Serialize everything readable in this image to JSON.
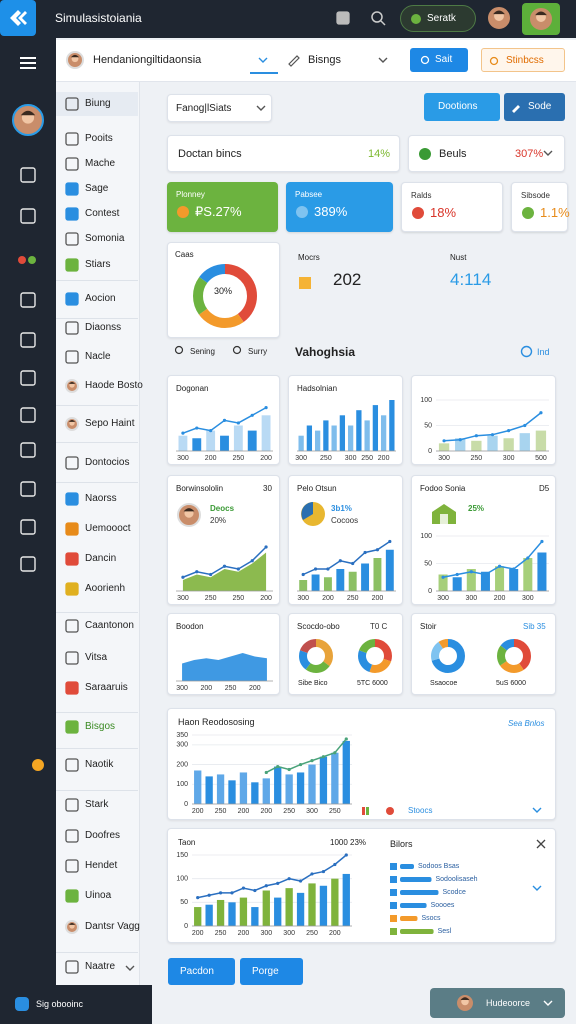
{
  "topbar": {
    "title": "Simulasistoiania",
    "button": "Seratk"
  },
  "subbar": {
    "project": "Hendaniongiltidaonsia",
    "filter": "Bisngs",
    "primary": "Sait",
    "secondary": "Stinbcss"
  },
  "sidebar": {
    "items": [
      "Biung",
      "Pooits",
      "Mache",
      "Sage",
      "Contest",
      "Somonia",
      "Stiars",
      "Aocion",
      "Diaonss",
      "Nacle",
      "Haode Bosto",
      "Sepo Haint",
      "Dontocios",
      "Naorss",
      "Uemoooct",
      "Dancin",
      "Aoorienh",
      "Caantonon",
      "Vitsa",
      "Saraaruis",
      "Bisgos",
      "Naotik",
      "Stark",
      "Doofres",
      "Hendet",
      "Uinoa",
      "Dantsr Vagg",
      "Naatre"
    ]
  },
  "toolbar": {
    "range": "Fanog|lSiats",
    "primary": "Dootions",
    "secondary": "Sode"
  },
  "summary": [
    {
      "label": "Doctan bincs",
      "value": "14%"
    },
    {
      "label": "Beuls",
      "value": "307%"
    }
  ],
  "kpis": [
    {
      "label": "Plonney",
      "value": "₽S.27%"
    },
    {
      "label": "Pabsee",
      "value": "389%"
    },
    {
      "label": "Ralds",
      "value": "18%"
    },
    {
      "label": "Sibsode",
      "value": "1.1%"
    }
  ],
  "donut": {
    "title": "Caas",
    "center": "30%",
    "values": [
      40,
      25,
      20,
      15
    ],
    "colors": [
      "#e04b3a",
      "#f39a2b",
      "#6cb33f",
      "#2a8ee0"
    ],
    "legend": [
      "Sening",
      "Surry"
    ]
  },
  "metrics": [
    {
      "label": "Mocrs",
      "value": "202"
    },
    {
      "label": "Nust",
      "value": "4:114"
    }
  ],
  "section": {
    "title": "Vahoghsia",
    "link": "Ind"
  },
  "charts": [
    {
      "title": "Dogonan",
      "values": [
        3,
        2.5,
        4,
        3,
        5,
        4,
        7
      ],
      "line": [
        3.5,
        4.5,
        4,
        6,
        5.5,
        7,
        8.5
      ],
      "ylim": [
        0,
        10
      ],
      "color": "#2a8ee0",
      "alt_color": "#b9daf4",
      "line_color": "#2a8ee0",
      "categories": [
        "300",
        null,
        "200",
        null,
        "250",
        null,
        "200"
      ]
    },
    {
      "title": "Hadsolnian",
      "values": [
        3,
        5,
        4,
        6,
        5,
        7,
        5,
        8,
        6,
        9,
        7,
        10
      ],
      "ylim": [
        0,
        10
      ],
      "color": "#2a8ee0",
      "alt_color": "#7fbdec",
      "categories": [
        "300",
        null,
        null,
        "250",
        null,
        null,
        "300",
        null,
        "250",
        null,
        "200",
        null
      ]
    },
    {
      "values": [
        15,
        25,
        20,
        30,
        25,
        35,
        40
      ],
      "line": [
        20,
        22,
        30,
        32,
        40,
        50,
        75
      ],
      "ylim": [
        0,
        100
      ],
      "yticks": [
        0,
        50,
        100
      ],
      "color": "#a8d4ef",
      "alt_color": "#c8dca8",
      "line_color": "#2a8ee0",
      "categories": [
        "300",
        null,
        "250",
        null,
        "300",
        null,
        "500"
      ]
    },
    {
      "title": "Borwinsololin",
      "note": "30",
      "badge": [
        "Deocs",
        "20%"
      ],
      "kind": "area",
      "values": [
        2,
        3,
        2.5,
        4,
        3.5,
        5,
        7
      ],
      "line": [
        2.5,
        3.5,
        3,
        4.5,
        4,
        5.5,
        8
      ],
      "ylim": [
        0,
        10
      ],
      "color": "#7fb33c",
      "line_color": "#2a6fc0",
      "categories": [
        "300",
        null,
        "250",
        null,
        "250",
        null,
        "200"
      ]
    },
    {
      "title": "Pelo Otsun",
      "badge": [
        "3b1%",
        "Cocoos"
      ],
      "values": [
        2,
        3,
        2.5,
        4,
        3.5,
        5,
        6,
        7.5
      ],
      "line": [
        3,
        4,
        4,
        5.5,
        5,
        7,
        7.5,
        9
      ],
      "ylim": [
        0,
        10
      ],
      "color": "#2a8ee0",
      "alt_color": "#8cc063",
      "line_color": "#2a6fc0",
      "categories": [
        "300",
        null,
        "200",
        null,
        "250",
        null,
        "200",
        null
      ]
    },
    {
      "title": "Fodoo Sonia",
      "note": "D5",
      "badge": [
        "25%"
      ],
      "values": [
        30,
        25,
        40,
        35,
        45,
        40,
        60,
        70
      ],
      "line": [
        25,
        30,
        35,
        30,
        45,
        40,
        60,
        90
      ],
      "ylim": [
        0,
        100
      ],
      "yticks": [
        0,
        50,
        100
      ],
      "color": "#2a8ee0",
      "alt_color": "#a6cf7a",
      "line_color": "#2a8ee0",
      "categories": [
        "300",
        null,
        "300",
        null,
        "200",
        null,
        "300",
        null
      ]
    },
    {
      "title": "Boodon",
      "kind": "area",
      "values": [
        5,
        6,
        6.5,
        6,
        7,
        8,
        7,
        6.5
      ],
      "ylim": [
        0,
        10
      ],
      "color": "#2a8ee0",
      "categories": [
        "300",
        null,
        "200",
        null,
        "250",
        null,
        "200",
        null
      ]
    },
    {
      "title": "Haon Reodososing",
      "values": [
        170,
        140,
        150,
        120,
        160,
        110,
        130,
        190,
        150,
        160,
        200,
        240,
        260,
        320
      ],
      "line": [
        null,
        null,
        null,
        null,
        null,
        null,
        160,
        190,
        175,
        200,
        220,
        240,
        260,
        330
      ],
      "ylim": [
        0,
        350
      ],
      "yticks": [
        0,
        100,
        200,
        300,
        350
      ],
      "color": "#2a8ee0",
      "alt_color": "#5fa8e8",
      "line_color": "#4aa37a",
      "categories": [
        "200",
        null,
        "250",
        null,
        "200",
        null,
        "200",
        null,
        "250",
        null,
        "300",
        null,
        "250",
        null
      ]
    },
    {
      "title": "Taon",
      "note": "1000 23%",
      "values": [
        40,
        45,
        55,
        50,
        60,
        40,
        75,
        60,
        80,
        70,
        90,
        85,
        100,
        110
      ],
      "line": [
        60,
        65,
        70,
        70,
        80,
        75,
        85,
        90,
        100,
        95,
        110,
        115,
        130,
        150
      ],
      "ylim": [
        0,
        150
      ],
      "yticks": [
        0,
        50,
        100,
        150
      ],
      "color": "#2a8ee0",
      "alt_color": "#7fb33c",
      "line_color": "#2a6fc0",
      "categories": [
        "200",
        null,
        "250",
        null,
        "200",
        null,
        "300",
        null,
        "300",
        null,
        "250",
        null,
        "200",
        null
      ]
    }
  ],
  "donut_cards": [
    {
      "title": "Scocdo-obo",
      "note": "T0 C",
      "donuts": [
        {
          "values": [
            35,
            25,
            20,
            20
          ],
          "colors": [
            "#e8a33a",
            "#6cb33f",
            "#2a8ee0",
            "#c0504d"
          ],
          "label": "Sibe Bico"
        },
        {
          "values": [
            30,
            25,
            25,
            20
          ],
          "colors": [
            "#e04b3a",
            "#f39a2b",
            "#2a8ee0",
            "#6cb33f"
          ],
          "label": "5TC 6000"
        }
      ]
    },
    {
      "title": "Stoir",
      "note": "Sib 35",
      "donuts": [
        {
          "values": [
            70,
            20,
            10
          ],
          "colors": [
            "#2a8ee0",
            "#7fc3f0",
            "#f39a2b"
          ],
          "label": "Ssaocoe"
        },
        {
          "values": [
            40,
            25,
            20,
            15
          ],
          "colors": [
            "#e04b3a",
            "#f39a2b",
            "#6cb33f",
            "#2a8ee0"
          ],
          "label": "5uS 6000"
        }
      ]
    }
  ],
  "big_extras": {
    "link": "Sea Bnlos",
    "legend": "Stoocs"
  },
  "bilors": {
    "title": "Bilors",
    "xlim": [
      0,
      100
    ],
    "items": [
      {
        "label": "Sodoos Bsas",
        "value": 20,
        "color": "#2a8ee0"
      },
      {
        "label": "Sodoolisaseh",
        "value": 45,
        "color": "#2a8ee0"
      },
      {
        "label": "Scodce",
        "value": 55,
        "color": "#2a8ee0"
      },
      {
        "label": "Soooes",
        "value": 38,
        "color": "#2a8ee0"
      },
      {
        "label": "Ssocs",
        "value": 25,
        "color": "#f39a2b"
      },
      {
        "label": "Sesl",
        "value": 48,
        "color": "#7fb33c"
      }
    ]
  },
  "buttons": [
    "Pacdon",
    "Porge"
  ],
  "footer": {
    "user": "Sig obooinc",
    "action": "Hudeoorce"
  }
}
